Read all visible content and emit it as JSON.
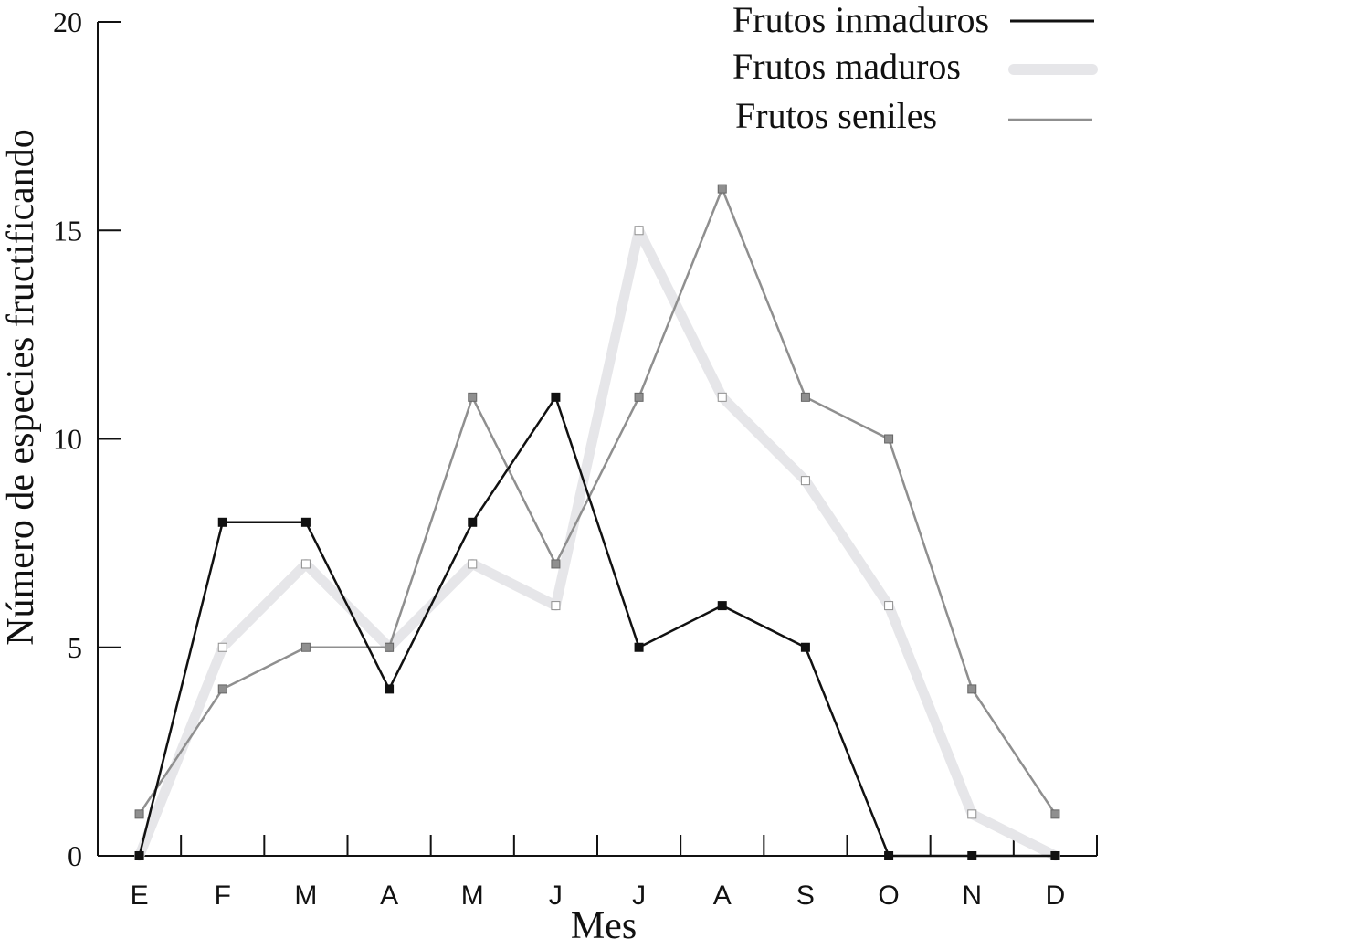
{
  "chart_data": {
    "type": "line",
    "title": "",
    "xlabel": "Mes",
    "ylabel": "Número de especies fructificando",
    "categories": [
      "E",
      "F",
      "M",
      "A",
      "M",
      "J",
      "J",
      "A",
      "S",
      "O",
      "N",
      "D"
    ],
    "yticks": [
      "0",
      "5",
      "10",
      "15",
      "20"
    ],
    "ylim": [
      0,
      20
    ],
    "grid": false,
    "legend_position": "top-right",
    "series": [
      {
        "name": "Frutos inmaduros",
        "values": [
          0,
          8,
          8,
          4,
          8,
          11,
          5,
          6,
          5,
          0,
          0,
          0
        ],
        "color": "#111111",
        "marker_fill": "#111111",
        "style": "thin-dark"
      },
      {
        "name": "Frutos maduros",
        "values": [
          0,
          5,
          7,
          5,
          7,
          6,
          15,
          11,
          9,
          6,
          1,
          0
        ],
        "color": "#e6e6e9",
        "marker_fill": "#ffffff",
        "style": "thick-light"
      },
      {
        "name": "Frutos seniles",
        "values": [
          1,
          4,
          5,
          5,
          11,
          7,
          11,
          16,
          11,
          10,
          4,
          1
        ],
        "color": "#8f8f8f",
        "marker_fill": "#8f8f8f",
        "style": "thin-gray"
      }
    ]
  }
}
